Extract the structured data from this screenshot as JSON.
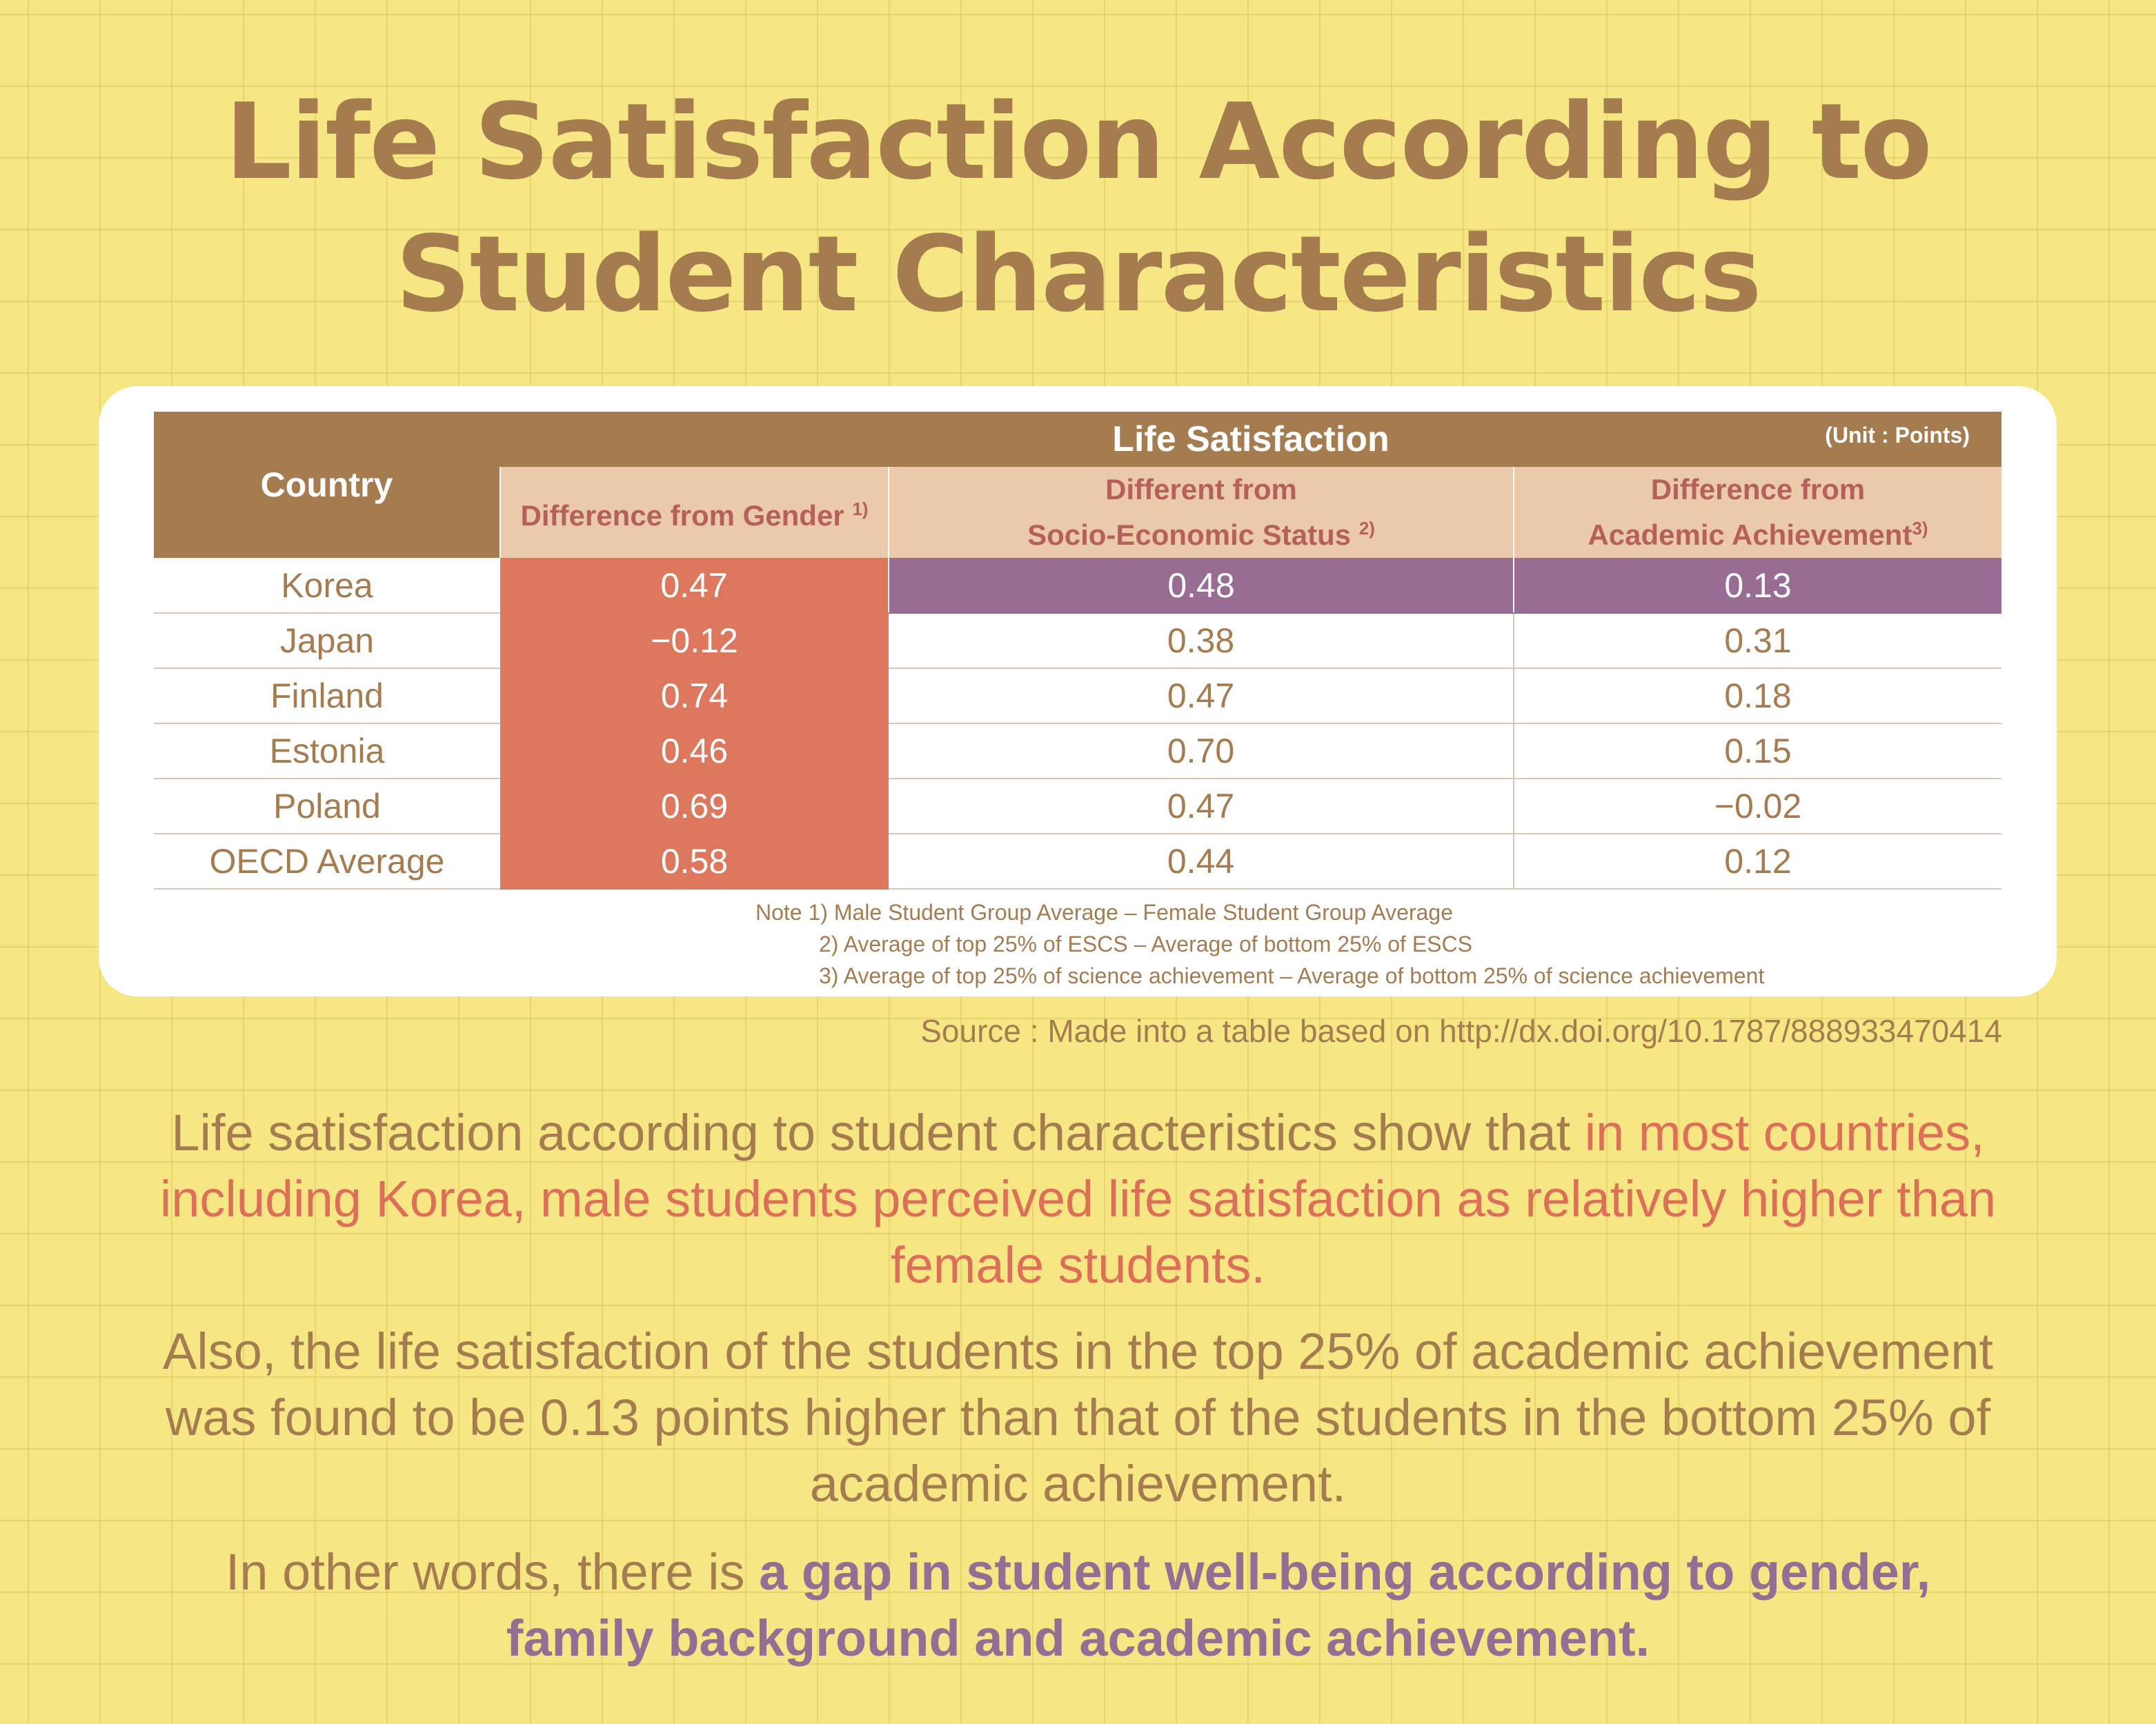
{
  "title": {
    "line1": "Life Satisfaction According to",
    "line2": "Student Characteristics"
  },
  "table": {
    "country_header": "Country",
    "group_header": "Life Satisfaction",
    "unit": "(Unit : Points)",
    "columns": [
      {
        "line1": "Difference from Gender",
        "line2": "",
        "note": "1)"
      },
      {
        "line1": "Different from",
        "line2": "Socio-Economic Status",
        "note": "2)"
      },
      {
        "line1": "Difference from",
        "line2": "Academic Achievement",
        "note": "3)"
      }
    ],
    "rows": [
      {
        "country": "Korea",
        "gender": "0.47",
        "ses": "0.48",
        "academic": "0.13"
      },
      {
        "country": "Japan",
        "gender": "−0.12",
        "ses": "0.38",
        "academic": "0.31"
      },
      {
        "country": "Finland",
        "gender": "0.74",
        "ses": "0.47",
        "academic": "0.18"
      },
      {
        "country": "Estonia",
        "gender": "0.46",
        "ses": "0.70",
        "academic": "0.15"
      },
      {
        "country": "Poland",
        "gender": "0.69",
        "ses": "0.47",
        "academic": "−0.02"
      },
      {
        "country": "OECD Average",
        "gender": "0.58",
        "ses": "0.44",
        "academic": "0.12"
      }
    ]
  },
  "notes": [
    "Note 1) Male Student Group Average – Female Student Group Average",
    "2) Average of top 25% of ESCS  – Average of bottom 25% of ESCS",
    "3) Average of top 25% of science achievement – Average of bottom 25% of science achievement"
  ],
  "source": "Source : Made into a table based on http://dx.doi.org/10.1787/888933470414",
  "paragraphs": {
    "p1_plain": "Life satisfaction according to student characteristics show that ",
    "p1_highlight_a": "in most countries,",
    "p1_highlight_b": "including Korea, male students perceived life satisfaction as relatively higher than",
    "p1_highlight_c": "female students.",
    "p2_line1": "Also, the life satisfaction of the students in the top 25% of academic achievement",
    "p2_line2": "was found to be 0.13 points higher than that of the students in the bottom 25% of",
    "p2_line3": "academic achievement.",
    "p3_plain": "In other words, there is ",
    "p3_highlight_a": "a gap in student well-being according to gender,",
    "p3_highlight_b": "family background and academic achievement."
  }
}
